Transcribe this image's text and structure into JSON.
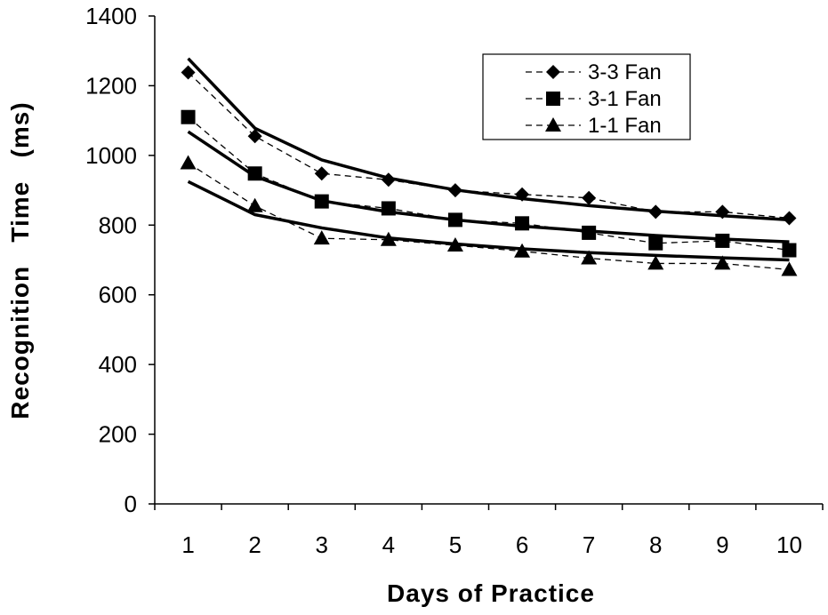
{
  "chart_data": {
    "type": "line",
    "title": "",
    "xlabel": "Days of Practice",
    "ylabel": "Recognition   Time   (ms)",
    "x": [
      1,
      2,
      3,
      4,
      5,
      6,
      7,
      8,
      9,
      10
    ],
    "xlim": [
      0.5,
      10.5
    ],
    "ylim": [
      0,
      1400
    ],
    "yticks": [
      0,
      200,
      400,
      600,
      800,
      1000,
      1200,
      1400
    ],
    "xticks": [
      1,
      2,
      3,
      4,
      5,
      6,
      7,
      8,
      9,
      10
    ],
    "legend_position": "top-right",
    "series": [
      {
        "name": "3-3 Fan",
        "marker": "diamond",
        "line_style": "dashed",
        "values": [
          1238,
          1055,
          948,
          930,
          900,
          888,
          878,
          838,
          838,
          820
        ]
      },
      {
        "name": "3-1 Fan",
        "marker": "square",
        "line_style": "dashed",
        "values": [
          1110,
          948,
          868,
          848,
          815,
          805,
          778,
          748,
          755,
          728
        ]
      },
      {
        "name": "1-1 Fan",
        "marker": "triangle",
        "line_style": "dashed",
        "values": [
          978,
          855,
          762,
          758,
          742,
          725,
          705,
          690,
          690,
          672
        ]
      }
    ],
    "fit_curves": [
      {
        "values": [
          1278,
          1078,
          987,
          935,
          901,
          876,
          856,
          840,
          827,
          815
        ]
      },
      {
        "values": [
          1068,
          940,
          870,
          838,
          815,
          797,
          783,
          770,
          760,
          752
        ]
      },
      {
        "values": [
          925,
          830,
          792,
          763,
          746,
          732,
          721,
          713,
          706,
          700
        ]
      }
    ],
    "colors": {
      "axis": "#000000",
      "line": "#000000",
      "background": "#ffffff"
    }
  }
}
